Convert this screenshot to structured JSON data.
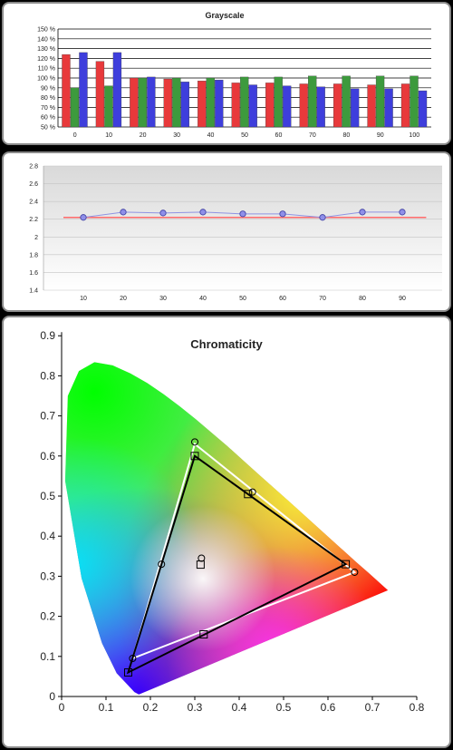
{
  "charts": {
    "grayscale": {
      "type": "bar",
      "title": "Grayscale",
      "categories": [
        "0",
        "10",
        "20",
        "30",
        "40",
        "50",
        "60",
        "70",
        "80",
        "90",
        "100"
      ],
      "y_ticks": [
        "50 %",
        "60 %",
        "70 %",
        "80 %",
        "90 %",
        "100 %",
        "110 %",
        "120 %",
        "130 %",
        "140 %",
        "150 %"
      ],
      "ylim": [
        50,
        150
      ],
      "series": [
        {
          "color": "#e8393b",
          "values": [
            124,
            117,
            100,
            99,
            97,
            95,
            95,
            94,
            94,
            93,
            94
          ]
        },
        {
          "color": "#3d9a3d",
          "values": [
            90,
            92,
            100,
            100,
            100,
            101,
            101,
            102,
            102,
            102,
            102
          ]
        },
        {
          "color": "#3e3edc",
          "values": [
            126,
            126,
            101,
            96,
            98,
            93,
            92,
            91,
            89,
            89,
            87
          ]
        }
      ]
    },
    "gamma": {
      "type": "line",
      "x": [
        10,
        20,
        30,
        40,
        50,
        60,
        70,
        80,
        90
      ],
      "y": [
        2.22,
        2.28,
        2.27,
        2.28,
        2.26,
        2.26,
        2.22,
        2.28,
        2.28
      ],
      "target": 2.22,
      "xlim": [
        0,
        100
      ],
      "ylim": [
        1.4,
        2.8
      ],
      "x_ticks": [
        "10",
        "20",
        "30",
        "40",
        "50",
        "60",
        "70",
        "80",
        "90"
      ],
      "y_ticks": [
        "1.4",
        "1.6",
        "1.8",
        "2",
        "2.2",
        "2.4",
        "2.6",
        "2.8"
      ],
      "line_color": "#8f93e3",
      "target_color": "#ff6a6a",
      "grid": true
    },
    "chromaticity": {
      "type": "scatter",
      "title": "Chromaticity",
      "xlim": [
        0,
        0.8
      ],
      "ylim": [
        0,
        0.9
      ],
      "x_ticks": [
        "0",
        "0.1",
        "0.2",
        "0.3",
        "0.4",
        "0.5",
        "0.6",
        "0.7",
        "0.8"
      ],
      "y_ticks": [
        "0",
        "0.1",
        "0.2",
        "0.3",
        "0.4",
        "0.5",
        "0.6",
        "0.7",
        "0.8",
        "0.9"
      ],
      "target_gamut": [
        [
          0.64,
          0.33
        ],
        [
          0.3,
          0.6
        ],
        [
          0.15,
          0.06
        ]
      ],
      "measured_gamut": [
        [
          0.66,
          0.31
        ],
        [
          0.3,
          0.63
        ],
        [
          0.16,
          0.095
        ]
      ],
      "target_points": [
        [
          0.64,
          0.33
        ],
        [
          0.3,
          0.6
        ],
        [
          0.15,
          0.06
        ],
        [
          0.42,
          0.505
        ],
        [
          0.32,
          0.155
        ],
        [
          0.313,
          0.329
        ]
      ],
      "measured_points": [
        [
          0.66,
          0.31
        ],
        [
          0.3,
          0.635
        ],
        [
          0.16,
          0.095
        ],
        [
          0.43,
          0.51
        ],
        [
          0.225,
          0.33
        ],
        [
          0.315,
          0.345
        ]
      ],
      "target_color": "#000000",
      "measured_color": "#ffffff"
    }
  }
}
